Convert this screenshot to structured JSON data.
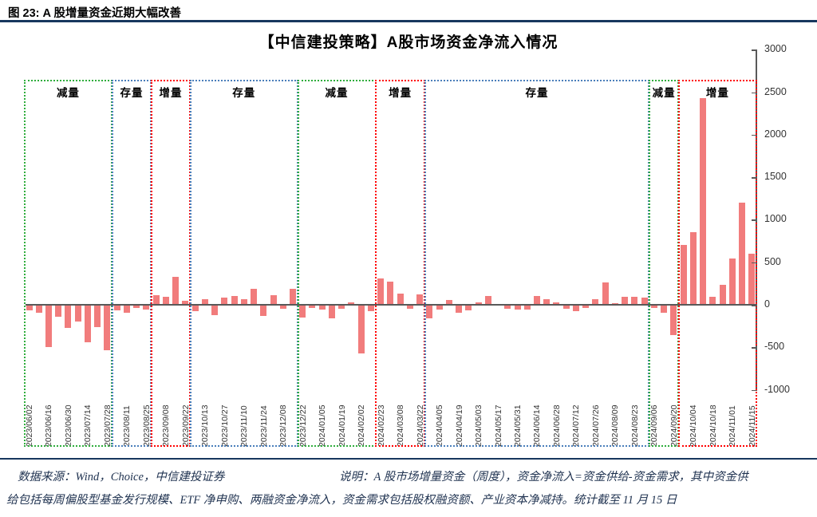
{
  "header": {
    "figure_label": "图 23: A 股增量资金近期大幅改善"
  },
  "chart_data": {
    "type": "bar",
    "title": "【中信建投策略】A股市场资金净流入情况",
    "bar_color": "#F17C7C",
    "grid": false,
    "legend_position": "none",
    "y_axis_side": "right",
    "ylim": [
      -1000,
      3000
    ],
    "yticks": [
      3000,
      2500,
      2000,
      1500,
      1000,
      500,
      0,
      -500,
      -1000
    ],
    "bars_per_label": 2,
    "x_labels": [
      "2023/06/02",
      "2023/06/16",
      "2023/06/30",
      "2023/07/14",
      "2023/07/28",
      "2023/08/11",
      "2023/08/25",
      "2023/09/08",
      "2023/09/22",
      "2023/10/13",
      "2023/10/27",
      "2023/11/10",
      "2023/11/24",
      "2023/12/08",
      "2023/12/22",
      "2024/01/05",
      "2024/01/19",
      "2024/02/02",
      "2024/02/23",
      "2024/03/08",
      "2024/03/22",
      "2024/04/05",
      "2024/04/19",
      "2024/05/03",
      "2024/05/17",
      "2024/05/31",
      "2024/06/14",
      "2024/06/28",
      "2024/07/12",
      "2024/07/26",
      "2024/08/09",
      "2024/08/23",
      "2024/09/06",
      "2024/09/20",
      "2024/10/04",
      "2024/10/18",
      "2024/11/01",
      "2024/11/15"
    ],
    "values": [
      -55,
      -80,
      -490,
      -130,
      -265,
      -185,
      -435,
      -250,
      -525,
      -60,
      -85,
      -30,
      -45,
      115,
      95,
      330,
      45,
      -70,
      70,
      -110,
      80,
      105,
      65,
      190,
      -125,
      115,
      -40,
      185,
      -140,
      -25,
      -50,
      -150,
      -40,
      30,
      -560,
      -70,
      305,
      270,
      130,
      -40,
      125,
      -150,
      -45,
      55,
      -80,
      -55,
      30,
      105,
      8,
      -40,
      -45,
      -50,
      105,
      65,
      30,
      -40,
      -65,
      -25,
      70,
      260,
      20,
      90,
      95,
      80,
      -30,
      -80,
      -350,
      700,
      850,
      2430,
      90,
      230,
      540,
      1200,
      600
    ],
    "sections": [
      {
        "label": "减量",
        "color": "#2FAD3C",
        "start_bar": 0,
        "end_bar": 8
      },
      {
        "label": "存量",
        "color": "#4A7EBB",
        "start_bar": 9,
        "end_bar": 12
      },
      {
        "label": "增量",
        "color": "#FF0000",
        "start_bar": 13,
        "end_bar": 16
      },
      {
        "label": "存量",
        "color": "#4A7EBB",
        "start_bar": 17,
        "end_bar": 27
      },
      {
        "label": "减量",
        "color": "#2FAD3C",
        "start_bar": 28,
        "end_bar": 35
      },
      {
        "label": "增量",
        "color": "#FF0000",
        "start_bar": 36,
        "end_bar": 40
      },
      {
        "label": "存量",
        "color": "#4A7EBB",
        "start_bar": 41,
        "end_bar": 63
      },
      {
        "label": "减量",
        "color": "#2FAD3C",
        "start_bar": 64,
        "end_bar": 66
      },
      {
        "label": "增量",
        "color": "#FF0000",
        "start_bar": 67,
        "end_bar": 74
      }
    ]
  },
  "footer": {
    "source": "数据来源：Wind，Choice，中信建投证券",
    "note_line1": "说明：A 股市场增量资金（周度），资金净流入=资金供给-资金需求，其中资金供",
    "note_line2": "给包括每周偏股型基金发行规模、ETF 净申购、两融资金净流入，资金需求包括股权融资额、产业资本净减持。统计截至 11 月 15 日"
  }
}
